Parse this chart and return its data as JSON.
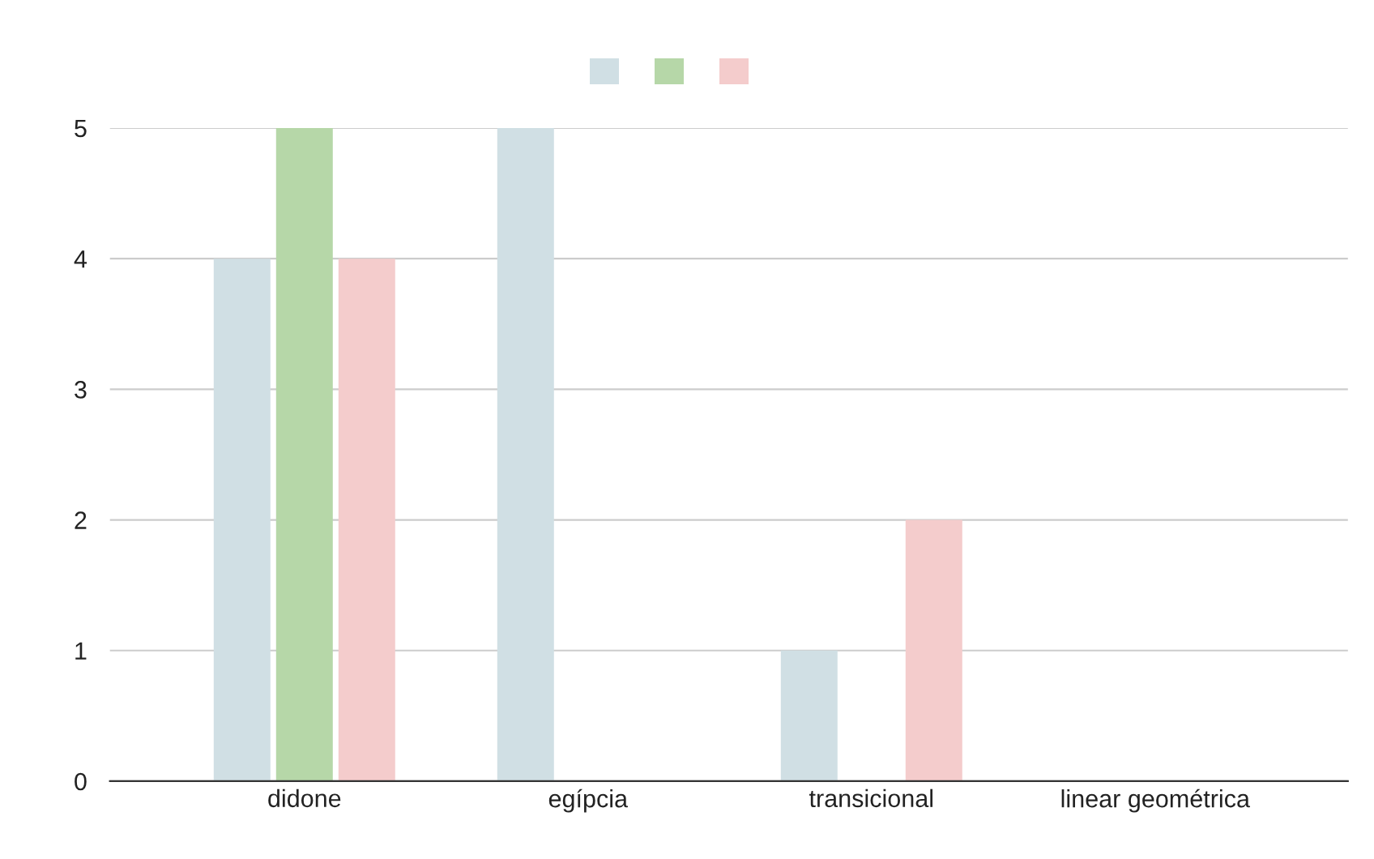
{
  "chart_data": {
    "type": "bar",
    "categories": [
      "didone",
      "egípcia",
      "transicional",
      "linear geométrica"
    ],
    "series": [
      {
        "color": "#d0dfe4",
        "values": [
          4,
          5,
          1,
          0
        ]
      },
      {
        "color": "#b6d7a8",
        "values": [
          5,
          0,
          0,
          0
        ]
      },
      {
        "color": "#f4cccc",
        "values": [
          4,
          0,
          2,
          0
        ]
      }
    ],
    "ylim": [
      0,
      5
    ],
    "yticks": [
      0,
      1,
      2,
      3,
      4,
      5
    ],
    "grid": "y"
  }
}
